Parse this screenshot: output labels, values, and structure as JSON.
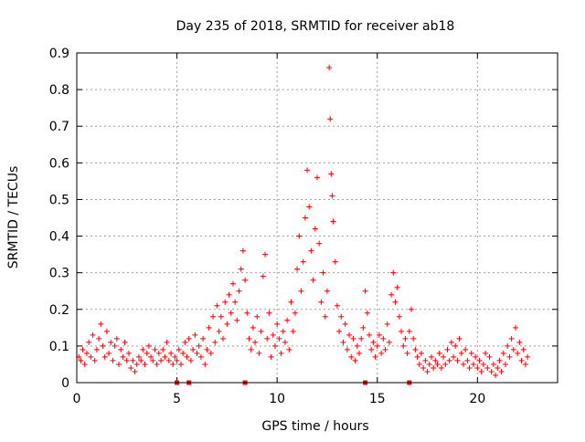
{
  "chart_data": {
    "type": "scatter",
    "title": "Day 235 of 2018, SRMTID for receiver ab18",
    "xlabel": "GPS time / hours",
    "ylabel": "SRMTID / TECUs",
    "xlim": [
      0,
      24
    ],
    "ylim": [
      0,
      0.9
    ],
    "x_ticks": [
      0,
      5,
      10,
      15,
      20
    ],
    "y_ticks": [
      0,
      0.1,
      0.2,
      0.3,
      0.4,
      0.5,
      0.6,
      0.7,
      0.8,
      0.9
    ],
    "x_tick_labels": [
      "0",
      "5",
      "10",
      "15",
      "20"
    ],
    "y_tick_labels": [
      "0",
      "0.1",
      "0.2",
      "0.3",
      "0.4",
      "0.5",
      "0.6",
      "0.7",
      "0.8",
      "0.9"
    ],
    "grid": true,
    "marker": "+",
    "color": "#ff0000",
    "data_range_hours": [
      0,
      22.5
    ],
    "baseline_markers_x": [
      5.0,
      5.6,
      8.4,
      14.4,
      16.6
    ],
    "series": [
      {
        "name": "SRMTID",
        "points": [
          [
            0.1,
            0.07
          ],
          [
            0.2,
            0.06
          ],
          [
            0.3,
            0.09
          ],
          [
            0.4,
            0.05
          ],
          [
            0.5,
            0.08
          ],
          [
            0.6,
            0.11
          ],
          [
            0.7,
            0.07
          ],
          [
            0.8,
            0.13
          ],
          [
            0.9,
            0.06
          ],
          [
            1.0,
            0.09
          ],
          [
            1.1,
            0.12
          ],
          [
            1.2,
            0.16
          ],
          [
            1.3,
            0.1
          ],
          [
            1.4,
            0.07
          ],
          [
            1.5,
            0.14
          ],
          [
            1.6,
            0.08
          ],
          [
            1.7,
            0.11
          ],
          [
            1.8,
            0.06
          ],
          [
            1.9,
            0.1
          ],
          [
            2.0,
            0.12
          ],
          [
            2.1,
            0.05
          ],
          [
            2.2,
            0.09
          ],
          [
            2.3,
            0.07
          ],
          [
            2.4,
            0.11
          ],
          [
            2.5,
            0.06
          ],
          [
            2.6,
            0.08
          ],
          [
            2.7,
            0.04
          ],
          [
            2.8,
            0.06
          ],
          [
            2.9,
            0.03
          ],
          [
            3.0,
            0.05
          ],
          [
            3.1,
            0.07
          ],
          [
            3.2,
            0.06
          ],
          [
            3.3,
            0.09
          ],
          [
            3.4,
            0.05
          ],
          [
            3.5,
            0.08
          ],
          [
            3.6,
            0.1
          ],
          [
            3.7,
            0.07
          ],
          [
            3.8,
            0.06
          ],
          [
            3.9,
            0.09
          ],
          [
            4.0,
            0.05
          ],
          [
            4.1,
            0.08
          ],
          [
            4.2,
            0.06
          ],
          [
            4.3,
            0.09
          ],
          [
            4.4,
            0.07
          ],
          [
            4.5,
            0.11
          ],
          [
            4.6,
            0.06
          ],
          [
            4.7,
            0.08
          ],
          [
            4.8,
            0.05
          ],
          [
            4.9,
            0.07
          ],
          [
            5.0,
            0.06
          ],
          [
            5.1,
            0.09
          ],
          [
            5.2,
            0.05
          ],
          [
            5.3,
            0.08
          ],
          [
            5.4,
            0.11
          ],
          [
            5.5,
            0.07
          ],
          [
            5.6,
            0.12
          ],
          [
            5.7,
            0.06
          ],
          [
            5.8,
            0.09
          ],
          [
            5.9,
            0.13
          ],
          [
            6.0,
            0.08
          ],
          [
            6.1,
            0.1
          ],
          [
            6.2,
            0.07
          ],
          [
            6.3,
            0.12
          ],
          [
            6.4,
            0.05
          ],
          [
            6.5,
            0.09
          ],
          [
            6.6,
            0.15
          ],
          [
            6.7,
            0.08
          ],
          [
            6.8,
            0.18
          ],
          [
            6.9,
            0.11
          ],
          [
            7.0,
            0.21
          ],
          [
            7.1,
            0.14
          ],
          [
            7.2,
            0.18
          ],
          [
            7.3,
            0.12
          ],
          [
            7.4,
            0.22
          ],
          [
            7.5,
            0.16
          ],
          [
            7.6,
            0.24
          ],
          [
            7.7,
            0.19
          ],
          [
            7.8,
            0.27
          ],
          [
            7.9,
            0.22
          ],
          [
            8.0,
            0.17
          ],
          [
            8.1,
            0.25
          ],
          [
            8.2,
            0.31
          ],
          [
            8.3,
            0.36
          ],
          [
            8.4,
            0.28
          ],
          [
            8.5,
            0.19
          ],
          [
            8.6,
            0.12
          ],
          [
            8.7,
            0.09
          ],
          [
            8.8,
            0.15
          ],
          [
            8.9,
            0.11
          ],
          [
            9.0,
            0.18
          ],
          [
            9.1,
            0.08
          ],
          [
            9.2,
            0.14
          ],
          [
            9.3,
            0.29
          ],
          [
            9.4,
            0.35
          ],
          [
            9.5,
            0.12
          ],
          [
            9.6,
            0.19
          ],
          [
            9.7,
            0.07
          ],
          [
            9.8,
            0.13
          ],
          [
            9.9,
            0.1
          ],
          [
            10.0,
            0.16
          ],
          [
            10.1,
            0.12
          ],
          [
            10.2,
            0.08
          ],
          [
            10.3,
            0.14
          ],
          [
            10.4,
            0.11
          ],
          [
            10.5,
            0.17
          ],
          [
            10.6,
            0.09
          ],
          [
            10.7,
            0.22
          ],
          [
            10.8,
            0.14
          ],
          [
            10.9,
            0.19
          ],
          [
            11.0,
            0.31
          ],
          [
            11.1,
            0.4
          ],
          [
            11.2,
            0.25
          ],
          [
            11.3,
            0.33
          ],
          [
            11.4,
            0.45
          ],
          [
            11.5,
            0.58
          ],
          [
            11.6,
            0.48
          ],
          [
            11.7,
            0.36
          ],
          [
            11.8,
            0.28
          ],
          [
            11.9,
            0.42
          ],
          [
            12.0,
            0.56
          ],
          [
            12.1,
            0.38
          ],
          [
            12.2,
            0.22
          ],
          [
            12.3,
            0.3
          ],
          [
            12.4,
            0.18
          ],
          [
            12.5,
            0.25
          ],
          [
            12.6,
            0.86
          ],
          [
            12.65,
            0.72
          ],
          [
            12.7,
            0.57
          ],
          [
            12.75,
            0.51
          ],
          [
            12.8,
            0.44
          ],
          [
            12.9,
            0.33
          ],
          [
            13.0,
            0.21
          ],
          [
            13.1,
            0.14
          ],
          [
            13.2,
            0.18
          ],
          [
            13.3,
            0.11
          ],
          [
            13.4,
            0.16
          ],
          [
            13.5,
            0.09
          ],
          [
            13.6,
            0.13
          ],
          [
            13.7,
            0.07
          ],
          [
            13.8,
            0.12
          ],
          [
            13.9,
            0.06
          ],
          [
            14.0,
            0.1
          ],
          [
            14.1,
            0.08
          ],
          [
            14.2,
            0.12
          ],
          [
            14.3,
            0.15
          ],
          [
            14.4,
            0.25
          ],
          [
            14.5,
            0.19
          ],
          [
            14.6,
            0.13
          ],
          [
            14.7,
            0.09
          ],
          [
            14.8,
            0.11
          ],
          [
            14.9,
            0.07
          ],
          [
            15.0,
            0.1
          ],
          [
            15.1,
            0.13
          ],
          [
            15.2,
            0.08
          ],
          [
            15.3,
            0.12
          ],
          [
            15.4,
            0.09
          ],
          [
            15.5,
            0.16
          ],
          [
            15.6,
            0.11
          ],
          [
            15.7,
            0.24
          ],
          [
            15.8,
            0.3
          ],
          [
            15.9,
            0.22
          ],
          [
            16.0,
            0.26
          ],
          [
            16.1,
            0.18
          ],
          [
            16.2,
            0.14
          ],
          [
            16.3,
            0.1
          ],
          [
            16.4,
            0.12
          ],
          [
            16.5,
            0.08
          ],
          [
            16.6,
            0.14
          ],
          [
            16.7,
            0.2
          ],
          [
            16.8,
            0.12
          ],
          [
            16.9,
            0.09
          ],
          [
            17.0,
            0.07
          ],
          [
            17.1,
            0.05
          ],
          [
            17.2,
            0.08
          ],
          [
            17.3,
            0.04
          ],
          [
            17.4,
            0.06
          ],
          [
            17.5,
            0.03
          ],
          [
            17.6,
            0.05
          ],
          [
            17.7,
            0.07
          ],
          [
            17.8,
            0.04
          ],
          [
            17.9,
            0.06
          ],
          [
            18.0,
            0.05
          ],
          [
            18.1,
            0.08
          ],
          [
            18.2,
            0.04
          ],
          [
            18.3,
            0.07
          ],
          [
            18.4,
            0.05
          ],
          [
            18.5,
            0.09
          ],
          [
            18.6,
            0.06
          ],
          [
            18.7,
            0.11
          ],
          [
            18.8,
            0.07
          ],
          [
            18.9,
            0.1
          ],
          [
            19.0,
            0.06
          ],
          [
            19.1,
            0.12
          ],
          [
            19.2,
            0.08
          ],
          [
            19.3,
            0.05
          ],
          [
            19.4,
            0.09
          ],
          [
            19.5,
            0.06
          ],
          [
            19.6,
            0.04
          ],
          [
            19.7,
            0.08
          ],
          [
            19.8,
            0.05
          ],
          [
            19.9,
            0.07
          ],
          [
            20.0,
            0.04
          ],
          [
            20.1,
            0.06
          ],
          [
            20.2,
            0.03
          ],
          [
            20.3,
            0.05
          ],
          [
            20.4,
            0.08
          ],
          [
            20.5,
            0.04
          ],
          [
            20.6,
            0.07
          ],
          [
            20.7,
            0.03
          ],
          [
            20.8,
            0.05
          ],
          [
            20.9,
            0.02
          ],
          [
            21.0,
            0.04
          ],
          [
            21.1,
            0.06
          ],
          [
            21.2,
            0.03
          ],
          [
            21.3,
            0.08
          ],
          [
            21.4,
            0.05
          ],
          [
            21.5,
            0.1
          ],
          [
            21.6,
            0.07
          ],
          [
            21.7,
            0.12
          ],
          [
            21.8,
            0.09
          ],
          [
            21.9,
            0.15
          ],
          [
            22.0,
            0.08
          ],
          [
            22.1,
            0.11
          ],
          [
            22.2,
            0.06
          ],
          [
            22.3,
            0.09
          ],
          [
            22.4,
            0.05
          ],
          [
            22.5,
            0.07
          ]
        ]
      }
    ]
  }
}
